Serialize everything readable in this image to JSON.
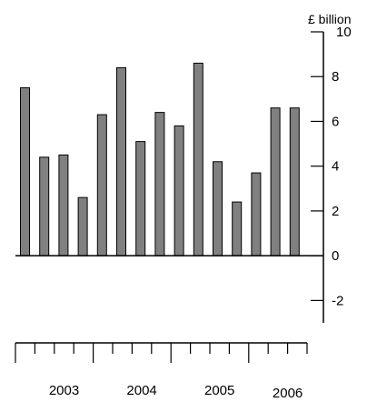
{
  "chart_data": {
    "type": "bar",
    "unit_label": "£ billion",
    "categories": [
      "2003 Q1",
      "2003 Q2",
      "2003 Q3",
      "2003 Q4",
      "2004 Q1",
      "2004 Q2",
      "2004 Q3",
      "2004 Q4",
      "2005 Q1",
      "2005 Q2",
      "2005 Q3",
      "2005 Q4",
      "2006 Q1",
      "2006 Q2",
      "2006 Q3"
    ],
    "values": [
      7.5,
      4.4,
      4.5,
      2.6,
      6.3,
      8.4,
      5.1,
      6.4,
      5.8,
      8.6,
      4.2,
      2.4,
      3.7,
      6.6,
      6.6
    ],
    "year_labels": [
      "2003",
      "2004",
      "2005",
      "2006"
    ],
    "year_label_quarters": [
      2.5,
      6.5,
      10.5,
      14.0
    ],
    "ylim": [
      -3,
      10
    ],
    "yticks": [
      -2,
      0,
      2,
      4,
      6,
      8,
      10
    ],
    "ytick_labels": [
      "-2",
      "0",
      "2",
      "4",
      "6",
      "8",
      "10"
    ],
    "axis_position": "right",
    "grid": false,
    "bar_color": "#808080",
    "bar_edge_color": "#000000"
  }
}
